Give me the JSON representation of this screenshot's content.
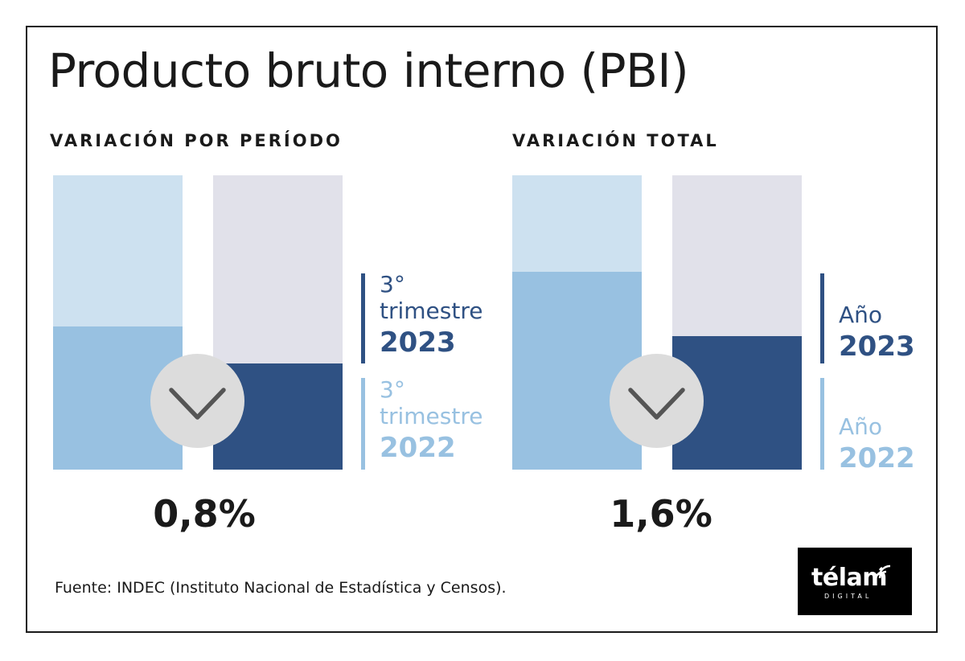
{
  "title": "Producto bruto interno (PBI)",
  "source": "Fuente: INDEC (Instituto Nacional de Estadística y Censos).",
  "logo": {
    "name": "télam",
    "sub": "DIGITAL"
  },
  "colors": {
    "bar_bg_light": "#cde1f0",
    "bar_fill_light": "#98c1e1",
    "bar_bg_gray": "#e1e1ea",
    "bar_fill_dark": "#2f5183",
    "legend_dark": "#2f5183",
    "legend_light": "#98c1e1",
    "circle": "#dcdcdc",
    "chevron": "#555555"
  },
  "chart_data": [
    {
      "type": "bar",
      "title": "VARIACIÓN POR PERÍODO",
      "icon": "chevron-down-icon",
      "variation_label": "0,8%",
      "bars": [
        {
          "legend_small": "3° trimestre",
          "legend_year": "2022",
          "fill_fraction": 0.487
        },
        {
          "legend_small": "3° trimestre",
          "legend_year": "2023",
          "fill_fraction": 0.361
        }
      ]
    },
    {
      "type": "bar",
      "title": "VARIACIÓN TOTAL",
      "icon": "chevron-down-icon",
      "variation_label": "1,6%",
      "bars": [
        {
          "legend_small": "Año",
          "legend_year": "2022",
          "fill_fraction": 0.672
        },
        {
          "legend_small": "Año",
          "legend_year": "2023",
          "fill_fraction": 0.454
        }
      ]
    }
  ]
}
